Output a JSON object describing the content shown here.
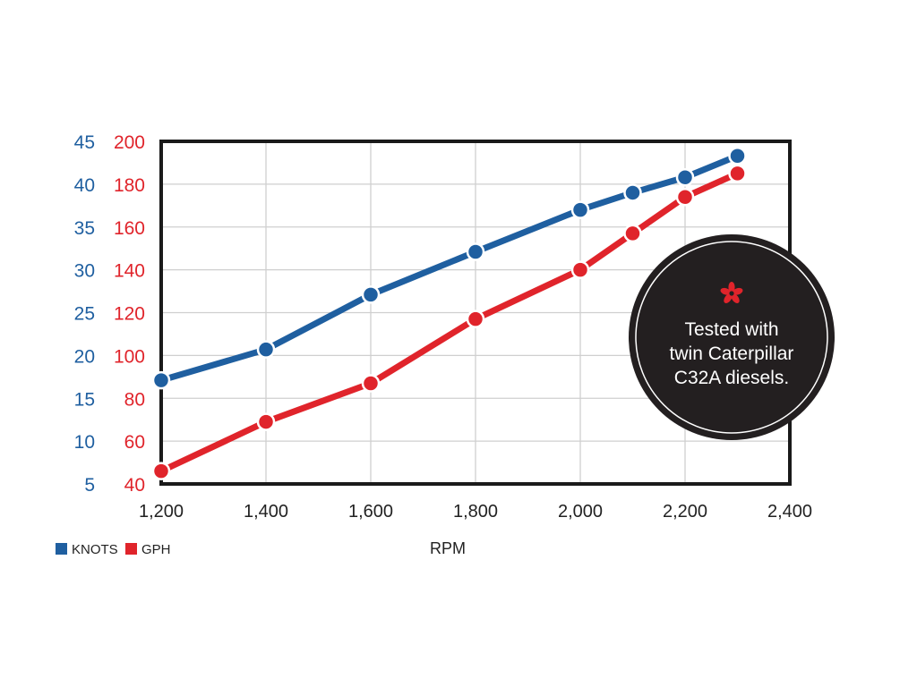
{
  "chart_data": {
    "type": "line",
    "x": [
      1200,
      1400,
      1600,
      1800,
      2000,
      2100,
      2200,
      2300
    ],
    "x_ticks": [
      "1,200",
      "1,400",
      "1,600",
      "1,800",
      "2,000",
      "2,200",
      "2,400"
    ],
    "xlim": [
      1200,
      2400
    ],
    "xlabel": "RPM",
    "y_left_ticks": [
      "45",
      "40",
      "35",
      "30",
      "25",
      "20",
      "15",
      "10",
      "5"
    ],
    "y_right_ticks": [
      "200",
      "180",
      "160",
      "140",
      "120",
      "100",
      "80",
      "60",
      "40"
    ],
    "ylim_knots": [
      5,
      45
    ],
    "ylim_gph": [
      40,
      200
    ],
    "grid": true,
    "legend_position": "bottom-left",
    "series": [
      {
        "name": "KNOTS",
        "axis": "knots",
        "color": "#1f5fa0",
        "values": [
          17.1,
          20.7,
          27.1,
          32.1,
          37.0,
          39.0,
          40.8,
          43.3
        ]
      },
      {
        "name": "GPH",
        "axis": "gph",
        "color": "#e0242b",
        "values": [
          46,
          69,
          87,
          117,
          140,
          157,
          174,
          185
        ]
      }
    ]
  },
  "colors": {
    "knots": "#1f5fa0",
    "gph": "#e0242b",
    "badge": "#231f20",
    "grid": "#cfcfcf",
    "frame": "#1a1a1a"
  },
  "badge": {
    "icon": "asterisk-icon",
    "lines": [
      "Tested with",
      "twin Caterpillar",
      "C32A diesels."
    ]
  },
  "legend": {
    "knots_label": "KNOTS",
    "gph_label": "GPH"
  }
}
